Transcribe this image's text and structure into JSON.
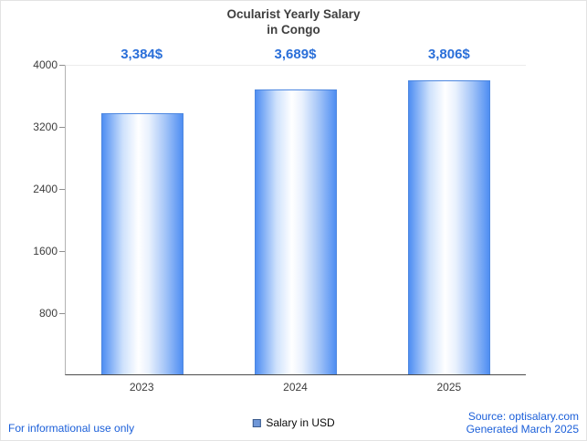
{
  "title": {
    "line1": "Ocularist Yearly Salary",
    "line2": "in Congo"
  },
  "chart_data": {
    "type": "bar",
    "categories": [
      "2023",
      "2024",
      "2025"
    ],
    "series": [
      {
        "name": "Salary in USD",
        "values": [
          3384,
          3689,
          3806
        ]
      }
    ],
    "value_labels": [
      "3,384$",
      "3,689$",
      "3,806$"
    ],
    "title": "Ocularist Yearly Salary in Congo",
    "xlabel": "",
    "ylabel": "",
    "ylim": [
      0,
      4000
    ],
    "yticks": [
      800,
      1600,
      2400,
      3200,
      4000
    ],
    "grid": false,
    "legend_position": "bottom",
    "colors": {
      "bar_edge": "#4f8ef2",
      "bar_center": "#ffffff",
      "bar_border": "#4d87e0",
      "value_label": "#2a6fd9",
      "footer_link": "#1b5fd9",
      "title_text": "#3f3f3f"
    }
  },
  "legend": {
    "label": "Salary in USD"
  },
  "footer": {
    "left": "For informational use only",
    "source": "Source: optisalary.com",
    "generated": "Generated March 2025"
  }
}
